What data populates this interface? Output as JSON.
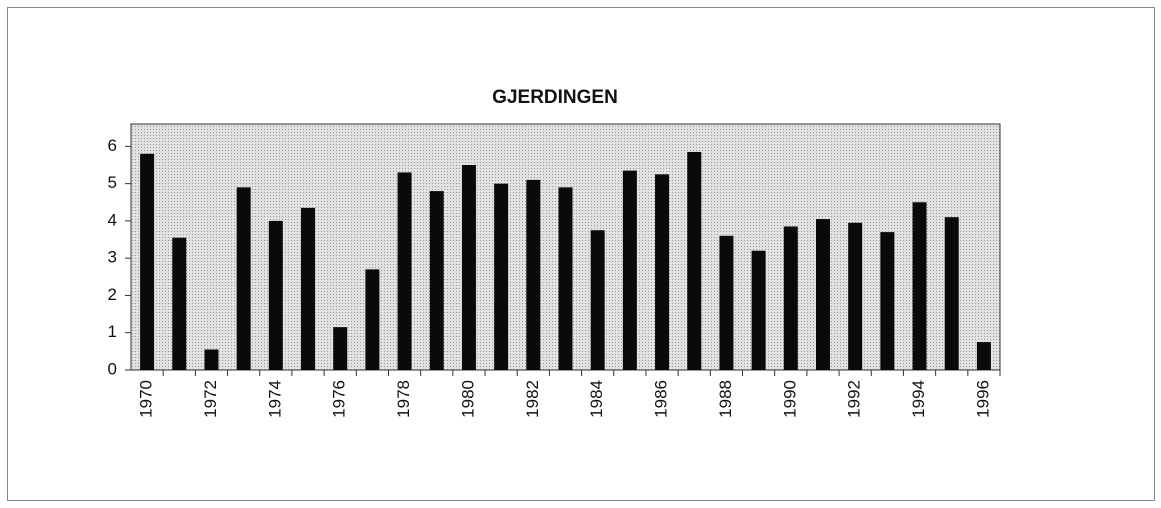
{
  "chart_data": {
    "type": "bar",
    "title": "GJERDINGEN",
    "categories": [
      "1970",
      null,
      "1972",
      null,
      "1974",
      null,
      "1976",
      null,
      "1978",
      null,
      "1980",
      null,
      "1982",
      null,
      "1984",
      null,
      "1986",
      null,
      "1988",
      null,
      "1990",
      null,
      "1992",
      null,
      "1994",
      null,
      "1996"
    ],
    "values": [
      5.8,
      3.55,
      0.55,
      4.9,
      4.0,
      4.35,
      1.15,
      2.7,
      5.3,
      4.8,
      5.5,
      5.0,
      5.1,
      4.9,
      3.75,
      5.35,
      5.25,
      5.85,
      3.6,
      3.2,
      3.85,
      4.05,
      3.95,
      3.7,
      4.5,
      4.1,
      0.75
    ],
    "color": "#0a0a0a",
    "ylim": [
      0,
      6.6
    ],
    "yticks": [
      0,
      1,
      2,
      3,
      4,
      5,
      6
    ],
    "grid": false
  }
}
